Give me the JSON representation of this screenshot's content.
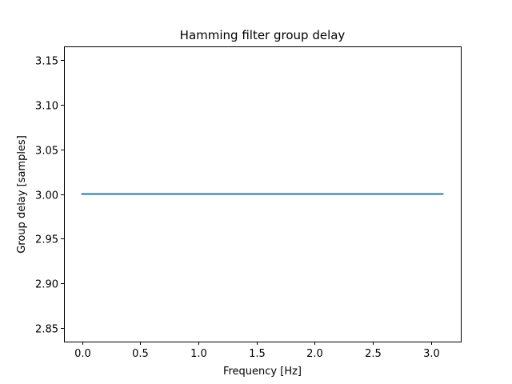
{
  "chart_data": {
    "type": "line",
    "title": "Hamming filter group delay",
    "xlabel": "Frequency [Hz]",
    "ylabel": "Group delay [samples]",
    "xlim": [
      -0.155,
      3.255
    ],
    "ylim": [
      2.835,
      3.165
    ],
    "xticks": [
      0.0,
      0.5,
      1.0,
      1.5,
      2.0,
      2.5,
      3.0
    ],
    "xtick_labels": [
      "0.0",
      "0.5",
      "1.0",
      "1.5",
      "2.0",
      "2.5",
      "3.0"
    ],
    "yticks": [
      2.85,
      2.9,
      2.95,
      3.0,
      3.05,
      3.1,
      3.15
    ],
    "ytick_labels": [
      "2.85",
      "2.90",
      "2.95",
      "3.00",
      "3.05",
      "3.10",
      "3.15"
    ],
    "grid": false,
    "series": [
      {
        "x": [
          0.0,
          3.1
        ],
        "y": [
          3.0,
          3.0
        ],
        "color": "#1f77b4"
      }
    ]
  }
}
